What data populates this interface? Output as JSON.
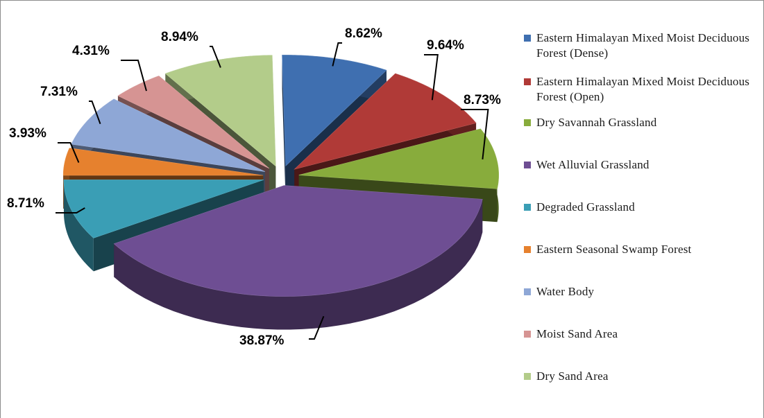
{
  "chart_data": {
    "type": "pie",
    "title": "",
    "slices": [
      {
        "label": "Eastern Himalayan Mixed Moist Deciduous Forest (Dense)",
        "value": 8.62,
        "display": "8.62%",
        "color": "#3f6fb0"
      },
      {
        "label": "Eastern Himalayan Mixed Moist Deciduous Forest (Open)",
        "value": 9.64,
        "display": "9.64%",
        "color": "#b03a37"
      },
      {
        "label": "Dry Savannah Grassland",
        "value": 8.73,
        "display": "8.73%",
        "color": "#88ac3c"
      },
      {
        "label": "Wet Alluvial Grassland",
        "value": 38.87,
        "display": "38.87%",
        "color": "#6e4e93"
      },
      {
        "label": "Degraded Grassland",
        "value": 8.71,
        "display": "8.71%",
        "color": "#3a9eb5"
      },
      {
        "label": "Eastern Seasonal Swamp Forest",
        "value": 3.93,
        "display": "3.93%",
        "color": "#e6812e"
      },
      {
        "label": "Water Body",
        "value": 7.31,
        "display": "7.31%",
        "color": "#8ea7d6"
      },
      {
        "label": "Moist Sand Area",
        "value": 4.31,
        "display": "4.31%",
        "color": "#d69493"
      },
      {
        "label": "Dry Sand Area",
        "value": 8.94,
        "display": "8.94%",
        "color": "#b3cc8a"
      }
    ],
    "legend_position": "right",
    "style": "3d-exploded"
  }
}
